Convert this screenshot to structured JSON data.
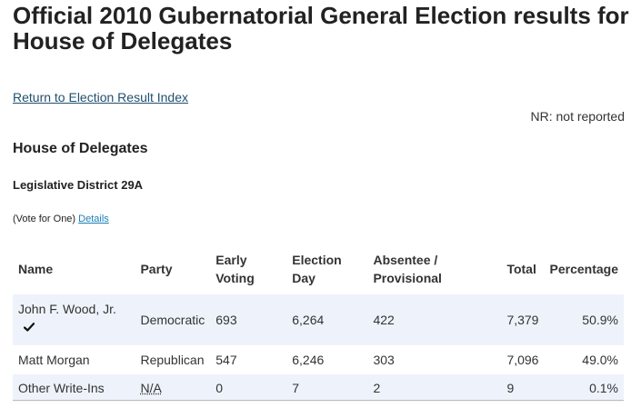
{
  "page": {
    "title": "Official 2010 Gubernatorial General Election results for House of Delegates"
  },
  "nav": {
    "return_link": "Return to Election Result Index"
  },
  "legend": {
    "nr_note": "NR: not reported"
  },
  "office": {
    "title": "House of Delegates",
    "district": "Legislative District 29A",
    "vote_instruction": "(Vote for One)",
    "details_link": "Details"
  },
  "table": {
    "headers": {
      "name": "Name",
      "party": "Party",
      "early_voting": "Early Voting",
      "election_day": "Election Day",
      "absentee": "Absentee / Provisional",
      "total": "Total",
      "percentage": "Percentage"
    },
    "rows": [
      {
        "name": "John F. Wood, Jr.",
        "winner": true,
        "party": "Democratic",
        "early_voting": "693",
        "election_day": "6,264",
        "absentee": "422",
        "total": "7,379",
        "percentage": "50.9%"
      },
      {
        "name": "Matt Morgan",
        "winner": false,
        "party": "Republican",
        "early_voting": "547",
        "election_day": "6,246",
        "absentee": "303",
        "total": "7,096",
        "percentage": "49.0%"
      },
      {
        "name": "Other Write-Ins",
        "winner": false,
        "party": "N/A",
        "early_voting": "0",
        "election_day": "7",
        "absentee": "2",
        "total": "9",
        "percentage": "0.1%"
      }
    ]
  },
  "icons": {
    "winner": "checkmark-icon"
  },
  "colors": {
    "link": "#1f4f6f",
    "details_link": "#1a7fb8",
    "row_highlight": "#eef3fb",
    "text": "#222222"
  }
}
